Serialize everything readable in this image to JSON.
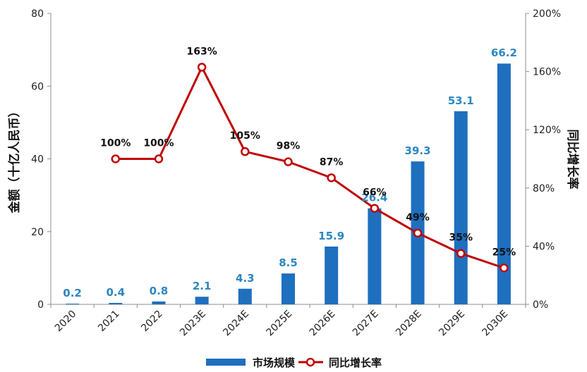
{
  "chart_data": {
    "type": "bar",
    "categories": [
      "2020",
      "2021",
      "2022",
      "2023E",
      "2024E",
      "2025E",
      "2026E",
      "2027E",
      "2028E",
      "2029E",
      "2030E"
    ],
    "series": [
      {
        "name": "市场规模",
        "type": "bar",
        "axis": "left",
        "values": [
          0.2,
          0.4,
          0.8,
          2.1,
          4.3,
          8.5,
          15.9,
          26.4,
          39.3,
          53.1,
          66.2
        ],
        "labels": [
          "0.2",
          "0.4",
          "0.8",
          "2.1",
          "4.3",
          "8.5",
          "15.9",
          "26.4",
          "39.3",
          "53.1",
          "66.2"
        ],
        "color": "#1F6FBF",
        "label_color": "#2E86C1"
      },
      {
        "name": "同比增长率",
        "type": "line",
        "axis": "right",
        "values": [
          null,
          100,
          100,
          163,
          105,
          98,
          87,
          66,
          49,
          35,
          25
        ],
        "labels": [
          "",
          "100%",
          "100%",
          "163%",
          "105%",
          "98%",
          "87%",
          "66%",
          "49%",
          "35%",
          "25%"
        ],
        "color": "#C00000"
      }
    ],
    "ylabel": "金额（十亿人民币）",
    "y2label": "同比增长率",
    "ylim": [
      0,
      80
    ],
    "y2lim": [
      0,
      200
    ],
    "yticks": [
      "0",
      "20",
      "40",
      "60",
      "80"
    ],
    "y2ticks": [
      "0%",
      "40%",
      "80%",
      "120%",
      "160%",
      "200%"
    ],
    "grid": false,
    "legend": "bottom"
  }
}
